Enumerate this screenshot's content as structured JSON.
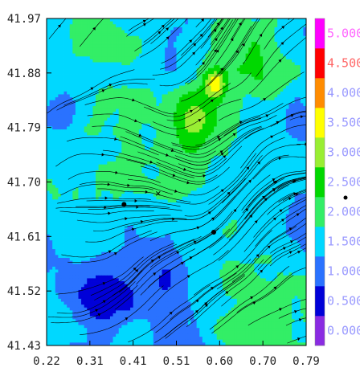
{
  "chart_data": {
    "type": "heatmap",
    "title": "",
    "xlabel": "",
    "ylabel": "",
    "xlim": [
      0.22,
      0.79
    ],
    "ylim": [
      41.43,
      41.97
    ],
    "x_ticks": [
      "0.22",
      "0.31",
      "0.41",
      "0.51",
      "0.60",
      "0.70",
      "0.79"
    ],
    "y_ticks": [
      "41.43",
      "41.52",
      "41.61",
      "41.70",
      "41.79",
      "41.88",
      "41.97"
    ],
    "colorbar": {
      "ticks": [
        "0.000",
        "0.500",
        "1.000",
        "1.500",
        "2.000",
        "2.500",
        "3.000",
        "3.500",
        "4.000",
        "4.500",
        "5.000"
      ],
      "colors": [
        "#8a2be2",
        "#0000d8",
        "#2a72ff",
        "#00d8ff",
        "#33ee66",
        "#00d800",
        "#99ee33",
        "#ffff00",
        "#ff8c00",
        "#ff0000",
        "#ff00ff"
      ],
      "tick_colors": [
        "#9999ff",
        "#9999ff",
        "#9999ff",
        "#9999ff",
        "#9999ff",
        "#9999ff",
        "#9999ff",
        "#9999ff",
        "#9999ff",
        "#ff6666",
        "#ff66ff"
      ]
    },
    "overlay": "streamlines",
    "markers": [
      {
        "x": 0.39,
        "y": 41.663
      },
      {
        "x": 0.587,
        "y": 41.617
      }
    ],
    "cross_marker": {
      "x": 0.465,
      "y": 41.681
    }
  }
}
